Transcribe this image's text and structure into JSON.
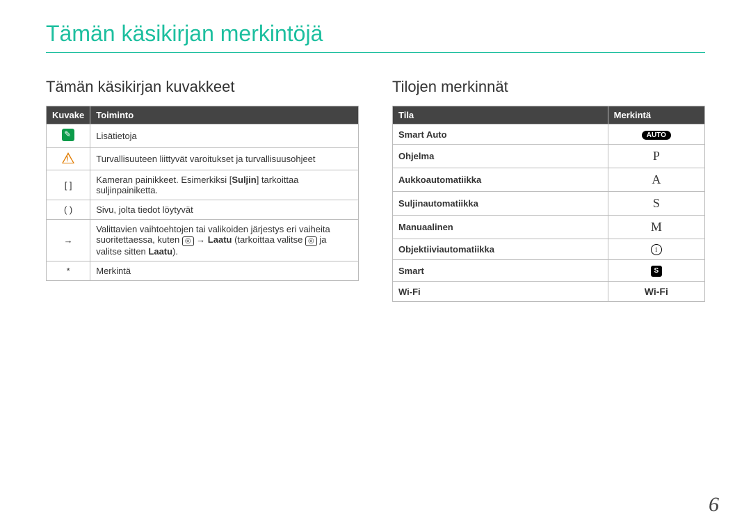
{
  "title": "Tämän käsikirjan merkintöjä",
  "left": {
    "heading": "Tämän käsikirjan kuvakkeet",
    "headers": [
      "Kuvake",
      "Toiminto"
    ],
    "rows": {
      "r1": "Lisätietoja",
      "r2": "Turvallisuuteen liittyvät varoitukset ja turvallisuusohjeet",
      "r3a": "Kameran painikkeet. Esimerkiksi [",
      "r3b": "Suljin",
      "r3c": "] tarkoittaa suljinpainiketta.",
      "r3icon": "[     ]",
      "r4": "Sivu, jolta tiedot löytyvät",
      "r4icon": "(     )",
      "r5a": "Valittavien vaihtoehtojen tai valikoiden järjestys eri vaiheita suoritettaessa, kuten ",
      "r5b": " → ",
      "r5c": "Laatu",
      "r5d": " (tarkoittaa valitse ",
      "r5e": " ja valitse sitten ",
      "r5f": "Laatu",
      "r5g": ").",
      "r5icon": "→",
      "r6": "Merkintä",
      "r6icon": "*"
    }
  },
  "right": {
    "heading": "Tilojen merkinnät",
    "headers": [
      "Tila",
      "Merkintä"
    ],
    "rows": [
      {
        "mode": "Smart Auto",
        "mark": "AUTO",
        "type": "auto"
      },
      {
        "mode": "Ohjelma",
        "mark": "P",
        "type": "letter"
      },
      {
        "mode": "Aukkoautomatiikka",
        "mark": "A",
        "type": "letter"
      },
      {
        "mode": "Suljinautomatiikka",
        "mark": "S",
        "type": "letter"
      },
      {
        "mode": "Manuaalinen",
        "mark": "M",
        "type": "letter"
      },
      {
        "mode": "Objektiiviautomatiikka",
        "mark": "i",
        "type": "circled"
      },
      {
        "mode": "Smart",
        "mark": "S",
        "type": "smart"
      },
      {
        "mode": "Wi-Fi",
        "mark": "Wi-Fi",
        "type": "wifi"
      }
    ]
  },
  "page_number": "6"
}
